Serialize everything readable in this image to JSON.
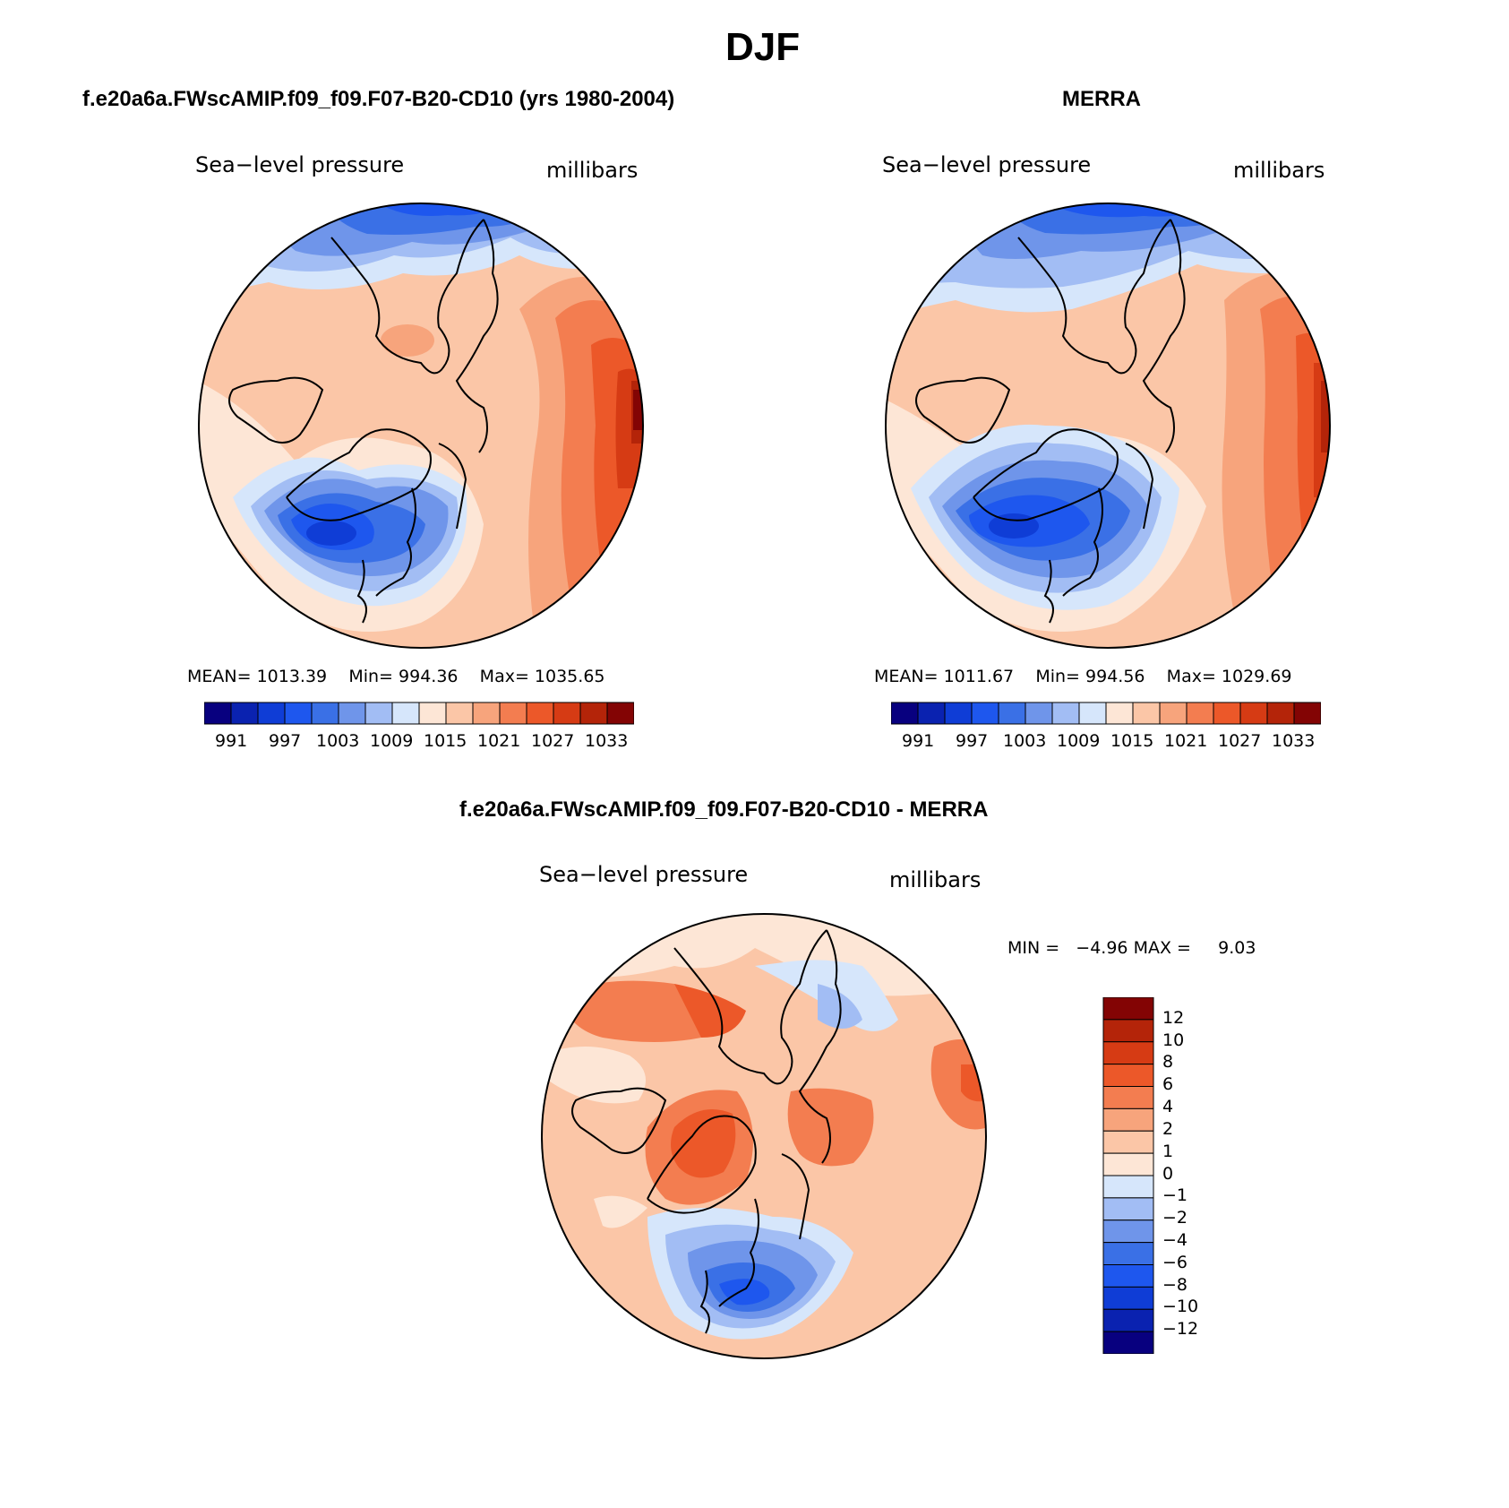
{
  "page_title": "DJF",
  "panels": [
    {
      "title": "f.e20a6a.FWscAMIP.f09_f09.F07-B20-CD10 (yrs 1980-2004)",
      "variable": "Sea−level pressure",
      "units": "millibars",
      "stats": {
        "mean_label": "MEAN=",
        "mean": "1013.39",
        "min_label": "Min=",
        "min": "994.36",
        "max_label": "Max=",
        "max": "1035.65"
      },
      "colorbar_ticks": [
        "991",
        "997",
        "1003",
        "1009",
        "1015",
        "1021",
        "1027",
        "1033"
      ]
    },
    {
      "title": "MERRA",
      "variable": "Sea−level pressure",
      "units": "millibars",
      "stats": {
        "mean_label": "MEAN=",
        "mean": "1011.67",
        "min_label": "Min=",
        "min": "994.56",
        "max_label": "Max=",
        "max": "1029.69"
      },
      "colorbar_ticks": [
        "991",
        "997",
        "1003",
        "1009",
        "1015",
        "1021",
        "1027",
        "1033"
      ]
    }
  ],
  "diff_panel": {
    "title": "f.e20a6a.FWscAMIP.f09_f09.F07-B20-CD10 - MERRA",
    "variable": "Sea−level pressure",
    "units": "millibars",
    "min_label": "MIN =",
    "min": "−4.96",
    "max_label": "MAX =",
    "max": "9.03",
    "colorbar_ticks": [
      "12",
      "10",
      "8",
      "6",
      "4",
      "2",
      "1",
      "0",
      "−1",
      "−2",
      "−4",
      "−6",
      "−8",
      "−10",
      "−12"
    ]
  },
  "colors": {
    "abs_scale": [
      "#08007f",
      "#0a22b0",
      "#0f3dd6",
      "#1e57ee",
      "#3a70e6",
      "#6f95ea",
      "#a2bdf4",
      "#d6e6fb",
      "#fde6d6",
      "#fbc6a7",
      "#f7a47c",
      "#f37d50",
      "#ec5829",
      "#d63b14",
      "#b42409",
      "#830404"
    ],
    "diff_scale": [
      "#830404",
      "#b42409",
      "#d63b14",
      "#ec5829",
      "#f37d50",
      "#f7a47c",
      "#fbc6a7",
      "#fde6d6",
      "#d6e6fb",
      "#a2bdf4",
      "#6f95ea",
      "#3a70e6",
      "#1e57ee",
      "#0f3dd6",
      "#0a22b0",
      "#08007f"
    ]
  },
  "map_data": {
    "projection": "north polar stereographic",
    "field": "DJF sea-level pressure (mb)"
  }
}
